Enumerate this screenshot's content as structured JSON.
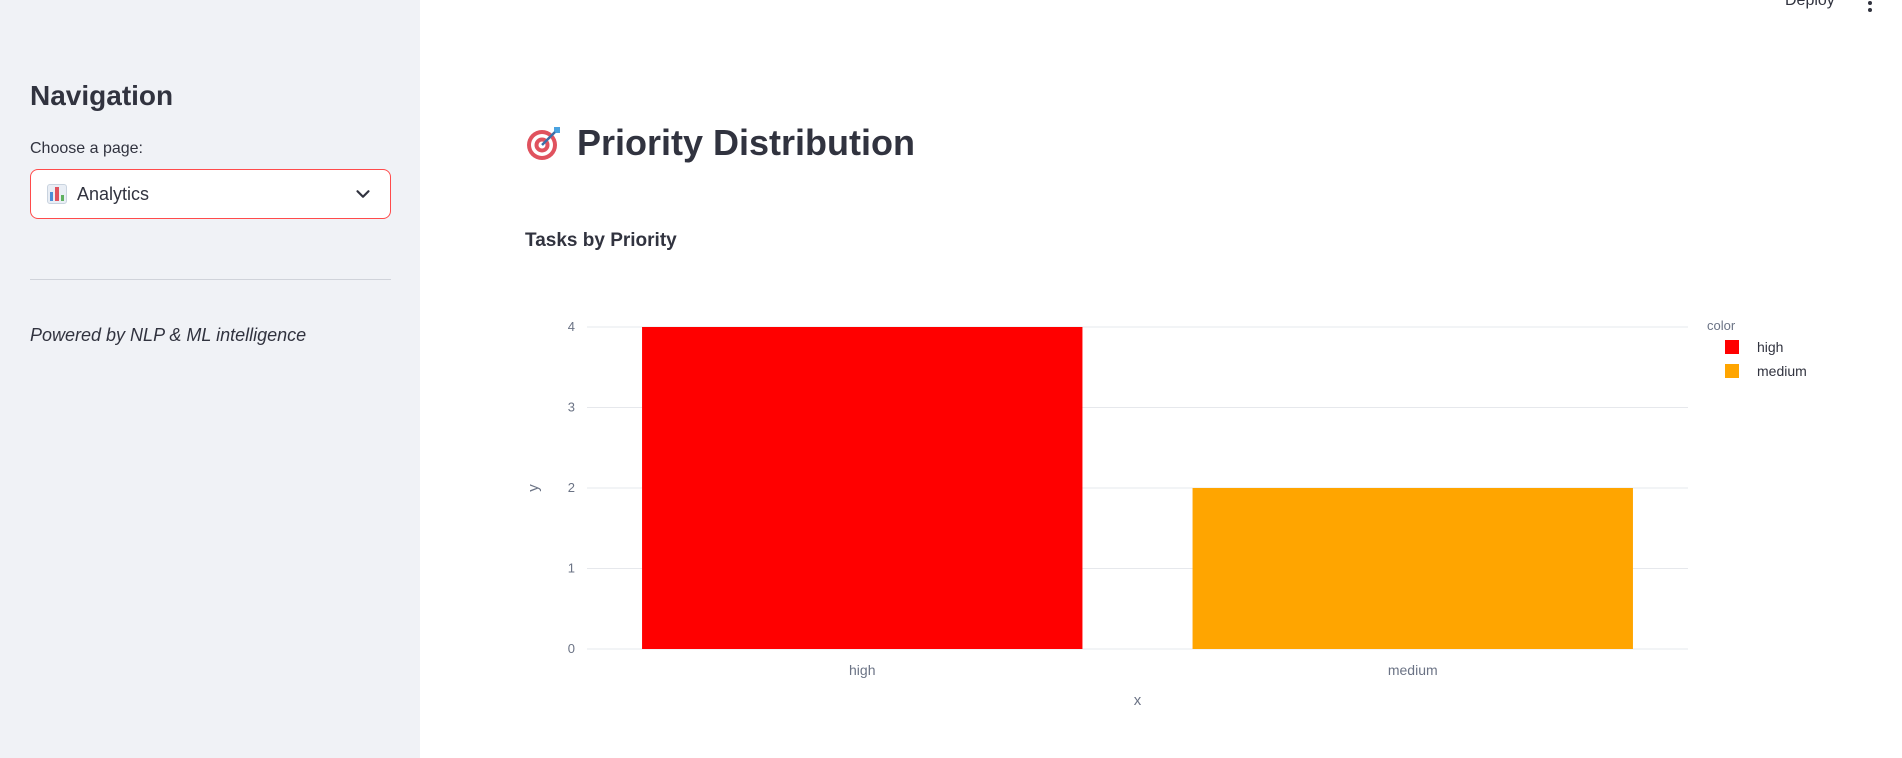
{
  "header": {
    "deploy_label": "Deploy"
  },
  "sidebar": {
    "title": "Navigation",
    "select_label": "Choose a page:",
    "selected_page": "Analytics",
    "footer_text": "Powered by NLP & ML intelligence"
  },
  "main": {
    "title": "Priority Distribution",
    "chart_subtitle": "Tasks by Priority"
  },
  "chart_data": {
    "type": "bar",
    "title": "Tasks by Priority",
    "categories": [
      "high",
      "medium"
    ],
    "values": [
      4,
      2
    ],
    "colors": [
      "#ff0000",
      "#ffa500"
    ],
    "xlabel": "x",
    "ylabel": "y",
    "ylim": [
      0,
      4
    ],
    "yticks": [
      0,
      1,
      2,
      3,
      4
    ],
    "grid": true,
    "legend": {
      "title": "color",
      "placement": "top-right",
      "entries": [
        {
          "label": "high",
          "color": "#ff0000"
        },
        {
          "label": "medium",
          "color": "#ffa500"
        }
      ]
    }
  }
}
